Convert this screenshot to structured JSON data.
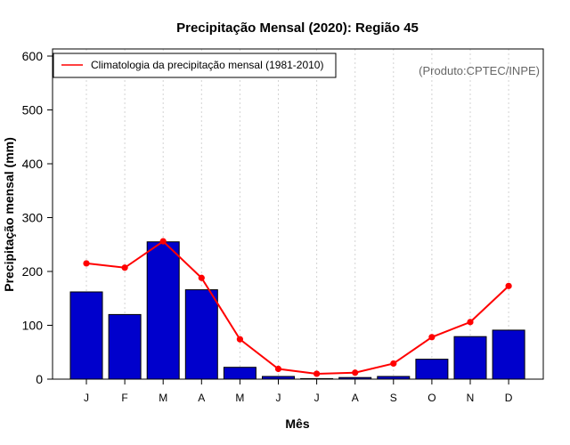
{
  "chart_data": {
    "type": "bar",
    "title": "Precipitação Mensal (2020): Região 45",
    "xlabel": "Mês",
    "ylabel": "Precipitação mensal (mm)",
    "ylim": [
      0,
      600
    ],
    "yticks": [
      0,
      100,
      200,
      300,
      400,
      500,
      600
    ],
    "categories": [
      "J",
      "F",
      "M",
      "A",
      "M",
      "J",
      "J",
      "A",
      "S",
      "O",
      "N",
      "D"
    ],
    "series": [
      {
        "name": "Precipitação mensal (2020)",
        "type": "bar",
        "color": "#0000CC",
        "values": [
          162,
          120,
          255,
          166,
          22,
          5,
          1,
          3,
          5,
          37,
          79,
          91
        ]
      },
      {
        "name": "Climatologia da precipitação mensal (1981-2010)",
        "type": "line",
        "color": "#FF0000",
        "values": [
          215,
          207,
          256,
          188,
          74,
          19,
          10,
          12,
          29,
          78,
          106,
          173
        ]
      }
    ],
    "legend": {
      "position": "top-left",
      "entries": [
        "Climatologia da precipitação mensal (1981-2010)"
      ]
    },
    "annotation": "(Produto:CPTEC/INPE)",
    "grid": "vertical dotted"
  }
}
